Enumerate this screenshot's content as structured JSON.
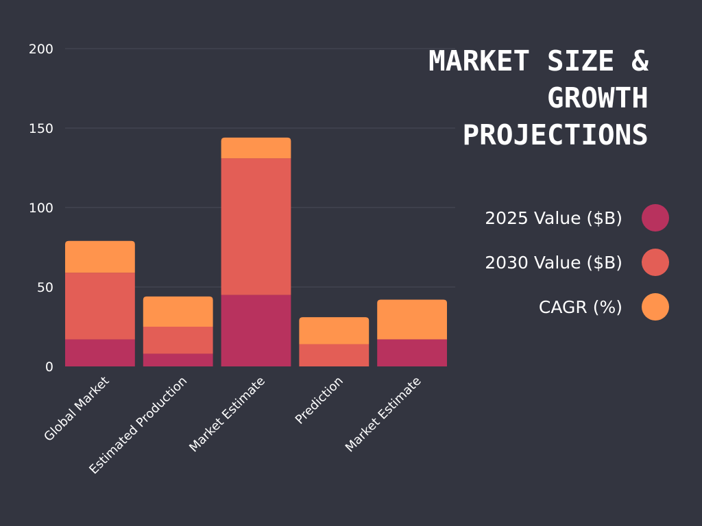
{
  "chart_data": {
    "type": "bar",
    "stacked": true,
    "title": "MARKET SIZE & GROWTH PROJECTIONS",
    "categories": [
      "Global Market",
      "Estimated Production",
      "Market Estimate",
      "Prediction",
      "Market Estimate"
    ],
    "series": [
      {
        "name": "2025 Value ($B)",
        "color": "#B8325E",
        "values": [
          17,
          8,
          45,
          0,
          17
        ]
      },
      {
        "name": "2030 Value ($B)",
        "color": "#E35E56",
        "values": [
          42,
          17,
          86,
          14,
          0
        ]
      },
      {
        "name": "CAGR (%)",
        "color": "#FF944D",
        "values": [
          20,
          19,
          13,
          17,
          25
        ]
      }
    ],
    "yticks": [
      0,
      50,
      100,
      150,
      200
    ],
    "yticklabels": [
      "0",
      "50",
      "100",
      "150",
      "200"
    ],
    "ylim": [
      0,
      200
    ],
    "grid": true,
    "legend_position": "right"
  }
}
